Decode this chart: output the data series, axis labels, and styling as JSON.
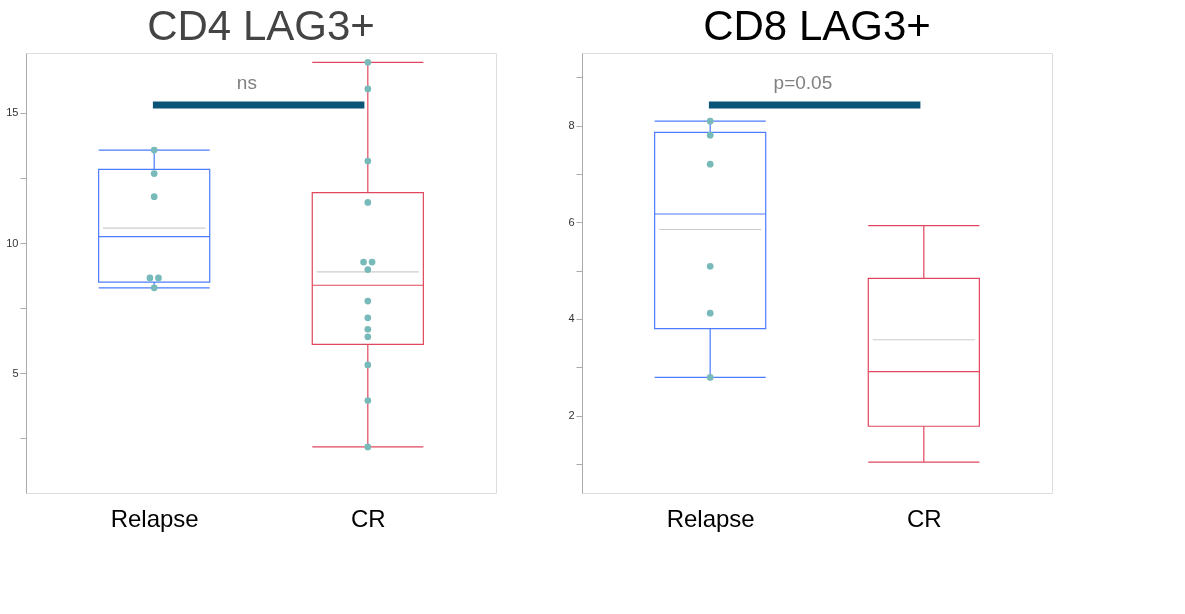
{
  "chart_data": [
    {
      "type": "box",
      "title": "CD4 LAG3+",
      "categories": [
        "Relapse",
        "CR"
      ],
      "colors": [
        "#4d7cfe",
        "#e0475e"
      ],
      "boxes": [
        {
          "low": 8.28,
          "q1": 8.5,
          "median": 10.25,
          "q3": 12.83,
          "high": 13.57,
          "mean": 10.57
        },
        {
          "low": 2.17,
          "q1": 6.11,
          "median": 8.38,
          "q3": 11.94,
          "high": 16.94,
          "mean": 8.89
        }
      ],
      "series": [
        {
          "type": "scatter",
          "color": "#78b9b9",
          "x": [
            "Relapse",
            "Relapse",
            "Relapse",
            "Relapse",
            "Relapse",
            "Relapse",
            "CR",
            "CR",
            "CR",
            "CR",
            "CR",
            "CR",
            "CR",
            "CR",
            "CR",
            "CR",
            "CR",
            "CR",
            "CR",
            "CR"
          ],
          "values": [
            13.57,
            12.67,
            11.78,
            8.66,
            8.66,
            8.28,
            16.94,
            15.92,
            13.15,
            11.56,
            9.27,
            9.27,
            8.98,
            7.77,
            7.13,
            6.69,
            6.4,
            5.32,
            3.95,
            2.17
          ]
        }
      ],
      "ylim": [
        0.4,
        17.3
      ],
      "yticks": [
        {
          "value": 2.5,
          "label": null
        },
        5,
        {
          "value": 7.5,
          "label": null
        },
        10,
        {
          "value": 12.5,
          "label": null
        },
        15
      ],
      "annotations": [
        "ns"
      ],
      "grid": false
    },
    {
      "type": "box",
      "title": "CD8 LAG3+",
      "categories": [
        "Relapse",
        "CR"
      ],
      "colors": [
        "#4d7cfe",
        "#e0475e"
      ],
      "boxes": [
        {
          "low": 2.79,
          "q1": 3.8,
          "median": 6.17,
          "q3": 7.86,
          "high": 8.09,
          "mean": 5.85
        },
        {
          "low": 1.04,
          "q1": 1.78,
          "median": 2.91,
          "q3": 4.84,
          "high": 5.93,
          "mean": 3.57
        }
      ],
      "series": [
        {
          "type": "scatter",
          "color": "#78b9b9",
          "x": [
            "Relapse",
            "Relapse",
            "Relapse",
            "Relapse",
            "Relapse",
            "Relapse"
          ],
          "values": [
            8.09,
            7.8,
            7.2,
            5.09,
            4.12,
            2.79
          ]
        }
      ],
      "ylim": [
        0.4,
        9.5
      ],
      "yticks": [
        {
          "value": 1,
          "label": null
        },
        2,
        {
          "value": 3,
          "label": null
        },
        4,
        {
          "value": 5,
          "label": null
        },
        6,
        {
          "value": 7,
          "label": null
        },
        8,
        {
          "value": 9,
          "label": null
        }
      ],
      "annotations": [
        "p=0.05"
      ],
      "grid": false
    }
  ]
}
